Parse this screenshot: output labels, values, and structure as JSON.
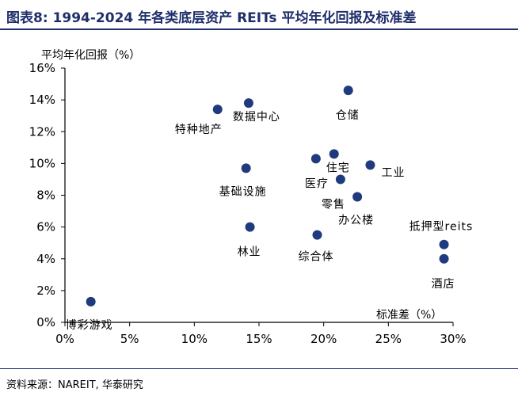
{
  "figure": {
    "title": "图表8:  1994-2024 年各类底层资产 REITs 平均年化回报及标准差",
    "source": "资料来源：NAREIT, 华泰研究"
  },
  "colors": {
    "title": "#1f2f6b",
    "point": "#1f3b7d",
    "axis": "#000000"
  },
  "chart_data": {
    "type": "scatter",
    "title": "",
    "xlabel": "标准差（%）",
    "ylabel": "平均年化回报（%）",
    "xlim": [
      0,
      30
    ],
    "ylim": [
      0,
      16
    ],
    "xticks": [
      0,
      5,
      10,
      15,
      20,
      25,
      30
    ],
    "yticks": [
      0,
      2,
      4,
      6,
      8,
      10,
      12,
      14,
      16
    ],
    "xtick_labels": [
      "0%",
      "5%",
      "10%",
      "15%",
      "20%",
      "25%",
      "30%"
    ],
    "ytick_labels": [
      "0%",
      "2%",
      "4%",
      "6%",
      "8%",
      "10%",
      "12%",
      "14%",
      "16%"
    ],
    "grid": false,
    "points": [
      {
        "label": "博彩游戏",
        "x": 2.0,
        "y": 1.3
      },
      {
        "label": "特种地产",
        "x": 11.8,
        "y": 13.4
      },
      {
        "label": "数据中心",
        "x": 14.2,
        "y": 13.8
      },
      {
        "label": "基础设施",
        "x": 14.0,
        "y": 9.7
      },
      {
        "label": "林业",
        "x": 14.3,
        "y": 6.0
      },
      {
        "label": "仓储",
        "x": 21.9,
        "y": 14.6
      },
      {
        "label": "医疗",
        "x": 19.4,
        "y": 10.3
      },
      {
        "label": "住宅",
        "x": 20.8,
        "y": 10.6
      },
      {
        "label": "零售",
        "x": 21.3,
        "y": 9.0
      },
      {
        "label": "工业",
        "x": 23.6,
        "y": 9.9
      },
      {
        "label": "办公楼",
        "x": 22.6,
        "y": 7.9
      },
      {
        "label": "综合体",
        "x": 19.5,
        "y": 5.5
      },
      {
        "label": "抵押型reits",
        "x": 29.3,
        "y": 4.9
      },
      {
        "label": "酒店",
        "x": 29.3,
        "y": 4.0
      }
    ]
  }
}
